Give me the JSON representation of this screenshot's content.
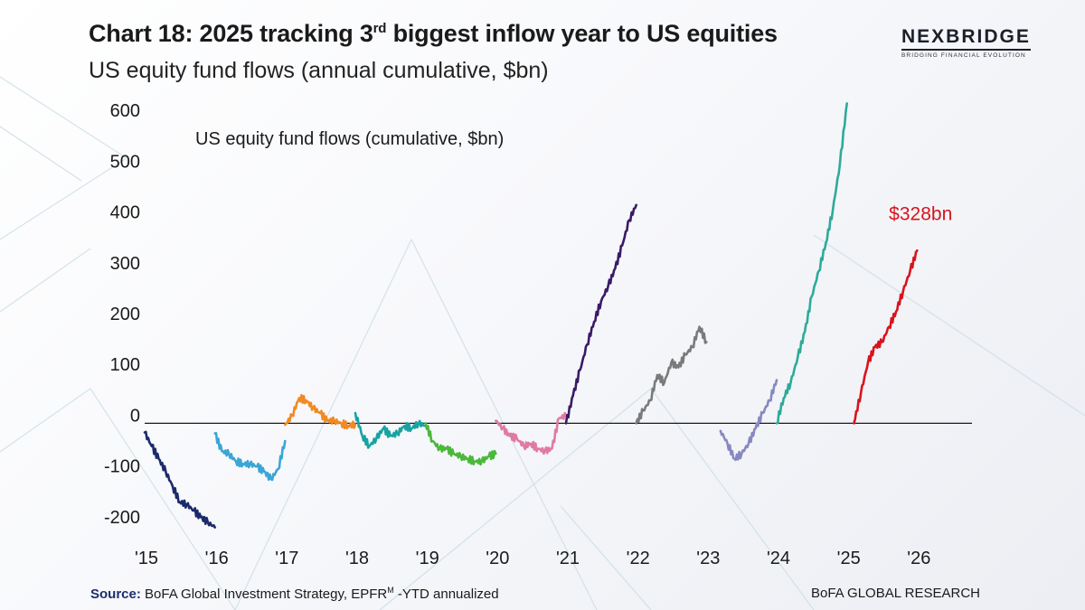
{
  "header": {
    "title_main": "Chart 18: 2025 tracking 3",
    "title_sup": "rd",
    "title_rest": " biggest inflow year to US equities",
    "subtitle": "US equity fund flows (annual cumulative, $bn)"
  },
  "logo": {
    "name": "NEXBRIDGE",
    "tagline": "BRIDGING FINANCIAL EVOLUTION"
  },
  "footer": {
    "source_label": "Source:",
    "source_text": " BoFA Global Investment Strategy, EPFR",
    "source_sup": "M",
    "source_suffix": " -YTD annualized",
    "brand": "BoFA GLOBAL RESEARCH"
  },
  "chart_data": {
    "type": "line",
    "title": "Chart 18: 2025 tracking 3rd biggest inflow year to US equities",
    "subtitle": "US equity fund flows (annual cumulative, $bn)",
    "series_label": "US equity fund flows (cumulative, $bn)",
    "ylabel": "",
    "xlabel": "",
    "ylim": [
      -220,
      620
    ],
    "xlim": [
      2015,
      2027
    ],
    "yticks": [
      600,
      500,
      400,
      300,
      200,
      100,
      0,
      -100,
      -200
    ],
    "ytick_labels": [
      "600",
      "500",
      "400",
      "300",
      "200",
      "100",
      "0",
      "-100",
      "-200"
    ],
    "xticks": [
      2015,
      2016,
      2017,
      2018,
      2019,
      2020,
      2021,
      2022,
      2023,
      2024,
      2025,
      2026
    ],
    "xtick_labels": [
      "'15",
      "'16",
      "'17",
      "'18",
      "'19",
      "'20",
      "'21",
      "'22",
      "'23",
      "'24",
      "'25",
      "'26"
    ],
    "grid": false,
    "zero_line": true,
    "series": [
      {
        "name": "2015",
        "color": "#1b2a6b",
        "x": [
          2015.0,
          2015.1,
          2015.2,
          2015.3,
          2015.4,
          2015.5,
          2015.6,
          2015.7,
          2015.8,
          2015.9,
          2016.0
        ],
        "y": [
          -18,
          -45,
          -70,
          -95,
          -125,
          -155,
          -160,
          -172,
          -185,
          -195,
          -205
        ]
      },
      {
        "name": "2016",
        "color": "#3aa6d4",
        "x": [
          2016.0,
          2016.1,
          2016.2,
          2016.3,
          2016.4,
          2016.5,
          2016.6,
          2016.7,
          2016.8,
          2016.9,
          2017.0
        ],
        "y": [
          -20,
          -55,
          -60,
          -75,
          -80,
          -80,
          -85,
          -95,
          -110,
          -90,
          -35
        ]
      },
      {
        "name": "2017",
        "color": "#f08a24",
        "x": [
          2017.0,
          2017.1,
          2017.2,
          2017.3,
          2017.4,
          2017.5,
          2017.6,
          2017.7,
          2017.8,
          2017.9,
          2018.0
        ],
        "y": [
          -3,
          15,
          50,
          45,
          30,
          20,
          5,
          5,
          0,
          -5,
          -2
        ]
      },
      {
        "name": "2018",
        "color": "#18a3a3",
        "x": [
          2018.0,
          2018.1,
          2018.2,
          2018.3,
          2018.4,
          2018.5,
          2018.6,
          2018.7,
          2018.8,
          2018.9,
          2019.0
        ],
        "y": [
          20,
          -25,
          -45,
          -30,
          -10,
          -25,
          -20,
          -5,
          -10,
          0,
          -5
        ]
      },
      {
        "name": "2019",
        "color": "#4ab83a",
        "x": [
          2019.0,
          2019.1,
          2019.2,
          2019.3,
          2019.4,
          2019.5,
          2019.6,
          2019.7,
          2019.8,
          2019.9,
          2020.0
        ],
        "y": [
          0,
          -35,
          -50,
          -50,
          -60,
          -65,
          -70,
          -75,
          -75,
          -65,
          -60
        ]
      },
      {
        "name": "2020",
        "color": "#e07aa4",
        "x": [
          2020.0,
          2020.1,
          2020.2,
          2020.3,
          2020.4,
          2020.5,
          2020.6,
          2020.7,
          2020.8,
          2020.9,
          2021.0
        ],
        "y": [
          5,
          -10,
          -25,
          -30,
          -45,
          -40,
          -50,
          -55,
          -50,
          10,
          15
        ]
      },
      {
        "name": "2021",
        "color": "#3a1a66",
        "x": [
          2021.0,
          2021.1,
          2021.2,
          2021.3,
          2021.4,
          2021.5,
          2021.6,
          2021.7,
          2021.8,
          2021.9,
          2022.0
        ],
        "y": [
          0,
          55,
          105,
          155,
          200,
          240,
          270,
          305,
          350,
          400,
          430
        ]
      },
      {
        "name": "2022",
        "color": "#7a7a7a",
        "x": [
          2022.0,
          2022.1,
          2022.2,
          2022.3,
          2022.4,
          2022.5,
          2022.6,
          2022.7,
          2022.8,
          2022.9,
          2023.0
        ],
        "y": [
          0,
          25,
          45,
          95,
          80,
          120,
          110,
          135,
          150,
          190,
          160
        ]
      },
      {
        "name": "2023",
        "color": "#8888c0",
        "x": [
          2023.2,
          2023.3,
          2023.4,
          2023.5,
          2023.6,
          2023.7,
          2023.8,
          2023.9,
          2024.0
        ],
        "y": [
          -15,
          -40,
          -70,
          -60,
          -40,
          -10,
          20,
          45,
          85
        ]
      },
      {
        "name": "2024",
        "color": "#2eaa9a",
        "x": [
          2024.0,
          2024.1,
          2024.2,
          2024.3,
          2024.4,
          2024.5,
          2024.6,
          2024.7,
          2024.8,
          2024.9,
          2025.0
        ],
        "y": [
          0,
          50,
          80,
          130,
          180,
          250,
          300,
          355,
          420,
          510,
          630
        ]
      },
      {
        "name": "2025",
        "color": "#d8141c",
        "x": [
          2025.1,
          2025.2,
          2025.3,
          2025.4,
          2025.5,
          2025.6,
          2025.7,
          2025.8,
          2025.9,
          2026.0
        ],
        "y": [
          0,
          60,
          120,
          150,
          160,
          190,
          220,
          260,
          300,
          340
        ]
      }
    ],
    "annotations": [
      {
        "text": "$328bn",
        "x": 2026.05,
        "y": 400,
        "color": "#d8141c"
      }
    ]
  }
}
